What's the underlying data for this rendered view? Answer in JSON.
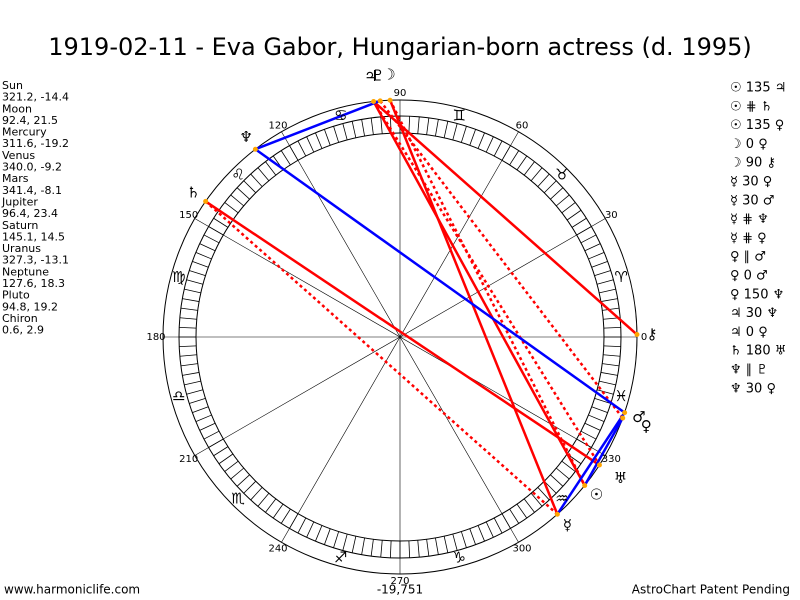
{
  "header": {
    "title": "1919-02-11 - Eva Gabor, Hungarian-born actress (d. 1995)"
  },
  "planets": [
    {
      "name": "Sun",
      "coords": "321.2, -14.4",
      "glyph": "☉"
    },
    {
      "name": "Moon",
      "coords": "92.4, 21.5",
      "glyph": "☽"
    },
    {
      "name": "Mercury",
      "coords": "311.6, -19.2",
      "glyph": "☿"
    },
    {
      "name": "Venus",
      "coords": "340.0, -9.2",
      "glyph": "♀"
    },
    {
      "name": "Mars",
      "coords": "341.4, -8.1",
      "glyph": "♂"
    },
    {
      "name": "Jupiter",
      "coords": "96.4, 23.4",
      "glyph": "♃"
    },
    {
      "name": "Saturn",
      "coords": "145.1, 14.5",
      "glyph": "♄"
    },
    {
      "name": "Uranus",
      "coords": "327.3, -13.1",
      "glyph": "♅"
    },
    {
      "name": "Neptune",
      "coords": "127.6, 18.3",
      "glyph": "♆"
    },
    {
      "name": "Pluto",
      "coords": "94.8, 19.2",
      "glyph": "♇"
    },
    {
      "name": "Chiron",
      "coords": "0.6, 2.9",
      "glyph": "⚷"
    }
  ],
  "aspects": [
    "☉ 135 ♃",
    "☉ ⋕ ♄",
    "☉ 135 ♀",
    "☽ 0 ♀",
    "☽ 90 ⚷",
    "☿ 30 ♀",
    "☿ 30 ♂",
    "☿ ⋕ ♆",
    "☿ ⋕ ♀",
    "♀ ∥ ♂",
    "♀ 0 ♂",
    "♀ 150 ♆",
    "♃ 30 ♆",
    "♃ 0 ♀",
    "♄ 180 ♅",
    "♆ ∥ ♇",
    "♆ 30 ♀"
  ],
  "wheel": {
    "degrees": [
      0,
      30,
      60,
      90,
      120,
      150,
      180,
      210,
      240,
      270,
      300,
      330
    ],
    "signs": [
      "♈",
      "♉",
      "♊",
      "♋",
      "♌",
      "♍",
      "♎",
      "♏",
      "♐",
      "♑",
      "♒",
      "♓"
    ],
    "offset": "-19,751"
  },
  "footer": {
    "left": "www.harmoniclife.com",
    "right": "AstroChart Patent Pending"
  }
}
